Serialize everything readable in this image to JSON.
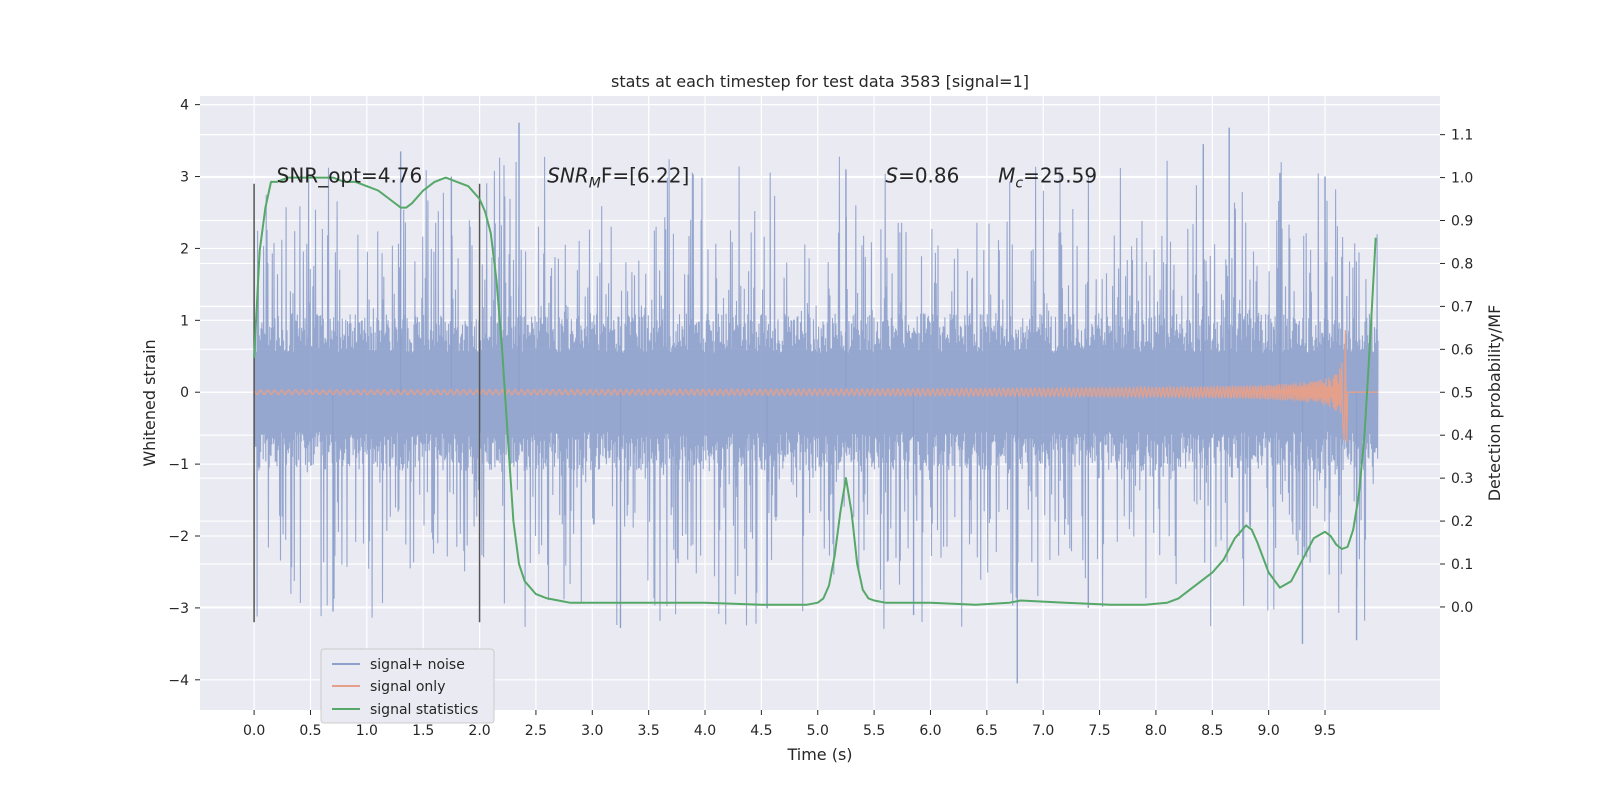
{
  "chart_data": {
    "type": "line",
    "title": "stats at each timestep for test data 3583 [signal=1]",
    "xlabel": "Time (s)",
    "ylabel": "Whitened strain",
    "y2label": "Detection probability/MF",
    "xlim": [
      -0.48,
      10.52
    ],
    "ylim": [
      -4.42,
      4.12
    ],
    "y2lim": [
      -0.24,
      1.19
    ],
    "xticks": [
      "0.0",
      "0.5",
      "1.0",
      "1.5",
      "2.0",
      "2.5",
      "3.0",
      "3.5",
      "4.0",
      "4.5",
      "5.0",
      "5.5",
      "6.0",
      "6.5",
      "7.0",
      "7.5",
      "8.0",
      "8.5",
      "9.0",
      "9.5"
    ],
    "yticks": [
      "4",
      "3",
      "2",
      "1",
      "0",
      "−1",
      "−2",
      "−3",
      "−4"
    ],
    "y2ticks": [
      "1.1",
      "1.0",
      "0.9",
      "0.8",
      "0.7",
      "0.6",
      "0.5",
      "0.4",
      "0.3",
      "0.2",
      "0.1",
      "0.0"
    ],
    "grid": true,
    "legend_position": "lower-left",
    "annotations": [
      {
        "text": "SNR_opt=4.76",
        "x": 0.2,
        "y": 3.0
      },
      {
        "text": "SNR",
        "sub": "M",
        "rest": "F=[6.22]",
        "italic_main": true,
        "x": 2.6,
        "y": 3.0
      },
      {
        "text": "S",
        "rest": "=0.86",
        "italic_main": true,
        "x": 5.6,
        "y": 3.0
      },
      {
        "text": "M",
        "sub": "c",
        "rest": "=25.59",
        "italic_main": true,
        "x": 6.6,
        "y": 3.0
      }
    ],
    "vlines": [
      0.0,
      2.0
    ],
    "vline_range": [
      -3.2,
      2.9
    ],
    "series": [
      {
        "name": "signal+ noise",
        "color": "#8da0cb",
        "kind": "noise",
        "x_range": [
          0.0,
          9.97
        ],
        "core_amplitude": 1.1,
        "typical_peak": 2.4,
        "max_peak": 3.75,
        "min_trough": -4.05,
        "spikes": [
          {
            "x": 2.35,
            "y": 3.75
          },
          {
            "x": 8.65,
            "y": 3.68
          },
          {
            "x": 1.3,
            "y": 3.35
          },
          {
            "x": 8.42,
            "y": 3.45
          },
          {
            "x": 5.25,
            "y": 3.1
          },
          {
            "x": 6.77,
            "y": -4.05
          },
          {
            "x": 9.3,
            "y": -3.5
          },
          {
            "x": 9.78,
            "y": -3.45
          },
          {
            "x": 3.25,
            "y": -3.28
          },
          {
            "x": 0.7,
            "y": -3.05
          },
          {
            "x": 5.85,
            "y": -3.1
          },
          {
            "x": 4.55,
            "y": -3.0
          },
          {
            "x": 7.4,
            "y": -3.0
          },
          {
            "x": 9.1,
            "y": 3.05
          },
          {
            "x": 1.75,
            "y": 3.0
          },
          {
            "x": 9.5,
            "y": 3.0
          }
        ]
      },
      {
        "name": "signal only",
        "color": "#e5a08b",
        "kind": "chirp",
        "x_range": [
          0.0,
          9.68
        ],
        "merger_x": 9.68,
        "peak_amplitude": 1.05
      },
      {
        "name": "signal statistics",
        "color": "#55a868",
        "kind": "curve",
        "axis": "right",
        "x": [
          0.0,
          0.05,
          0.1,
          0.15,
          0.2,
          0.3,
          0.4,
          0.5,
          0.6,
          0.7,
          0.8,
          0.9,
          1.0,
          1.1,
          1.2,
          1.3,
          1.35,
          1.4,
          1.5,
          1.6,
          1.7,
          1.8,
          1.9,
          2.0,
          2.05,
          2.1,
          2.15,
          2.2,
          2.25,
          2.3,
          2.35,
          2.4,
          2.5,
          2.6,
          2.7,
          2.8,
          3.0,
          3.5,
          4.0,
          4.5,
          4.9,
          5.0,
          5.05,
          5.1,
          5.15,
          5.2,
          5.25,
          5.3,
          5.35,
          5.4,
          5.45,
          5.5,
          5.6,
          6.0,
          6.4,
          6.7,
          6.8,
          7.2,
          7.6,
          7.9,
          8.1,
          8.2,
          8.3,
          8.4,
          8.5,
          8.6,
          8.7,
          8.8,
          8.85,
          8.9,
          9.0,
          9.1,
          9.2,
          9.3,
          9.4,
          9.5,
          9.55,
          9.6,
          9.65,
          9.7,
          9.75,
          9.8,
          9.85,
          9.9,
          9.95
        ],
        "values": [
          0.58,
          0.83,
          0.93,
          0.99,
          0.99,
          1.0,
          1.0,
          1.0,
          1.0,
          1.0,
          0.99,
          0.99,
          0.98,
          0.97,
          0.95,
          0.93,
          0.93,
          0.94,
          0.97,
          0.99,
          1.0,
          0.99,
          0.98,
          0.95,
          0.92,
          0.87,
          0.76,
          0.6,
          0.4,
          0.2,
          0.1,
          0.06,
          0.03,
          0.02,
          0.015,
          0.01,
          0.01,
          0.01,
          0.01,
          0.005,
          0.005,
          0.01,
          0.02,
          0.05,
          0.12,
          0.22,
          0.3,
          0.22,
          0.1,
          0.04,
          0.02,
          0.015,
          0.01,
          0.01,
          0.005,
          0.01,
          0.015,
          0.01,
          0.005,
          0.005,
          0.01,
          0.02,
          0.04,
          0.06,
          0.08,
          0.11,
          0.16,
          0.19,
          0.18,
          0.15,
          0.08,
          0.045,
          0.06,
          0.11,
          0.16,
          0.175,
          0.165,
          0.145,
          0.135,
          0.14,
          0.18,
          0.26,
          0.4,
          0.62,
          0.86
        ]
      }
    ]
  }
}
